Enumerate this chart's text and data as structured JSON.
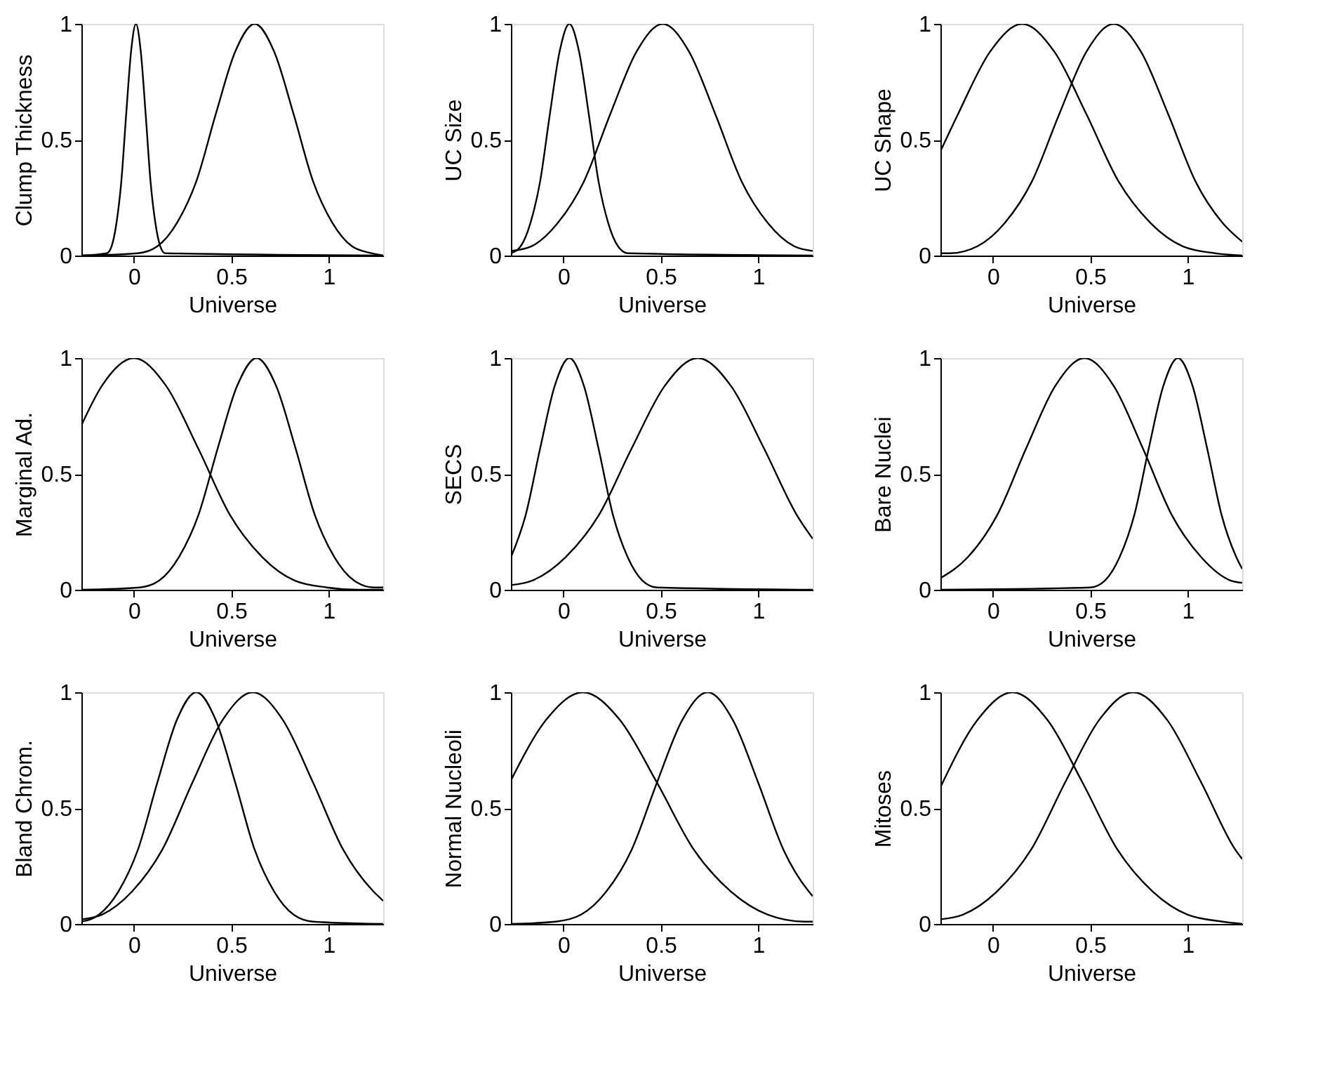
{
  "chart_data": [
    {
      "type": "line",
      "xlabel": "Universe",
      "ylabel": "Clump Thickness",
      "xlim": [
        -0.27,
        1.28
      ],
      "ylim": [
        0,
        1
      ],
      "xticks": [
        0,
        0.5,
        1
      ],
      "yticks": [
        0,
        0.5,
        1
      ],
      "grid": false,
      "legend": false,
      "series": [
        {
          "color": "#000000",
          "x": [
            -0.27,
            -0.14,
            -0.115,
            -0.09,
            -0.065,
            -0.04,
            -0.015,
            0.01,
            0.035,
            0.06,
            0.085,
            0.11,
            0.135,
            0.16,
            1.28
          ],
          "values": [
            0,
            0.01,
            0.04,
            0.14,
            0.32,
            0.61,
            0.88,
            1,
            0.88,
            0.61,
            0.32,
            0.14,
            0.04,
            0.01,
            0
          ]
        },
        {
          "color": "#000000",
          "x": [
            -0.27,
            0.02,
            0.12,
            0.22,
            0.32,
            0.42,
            0.52,
            0.62,
            0.72,
            0.82,
            0.92,
            1.02,
            1.12,
            1.22,
            1.28
          ],
          "values": [
            0,
            0.01,
            0.04,
            0.14,
            0.32,
            0.61,
            0.88,
            1,
            0.88,
            0.61,
            0.32,
            0.14,
            0.04,
            0.01,
            0
          ]
        }
      ]
    },
    {
      "type": "line",
      "xlabel": "Universe",
      "ylabel": "UC Size",
      "xlim": [
        -0.27,
        1.28
      ],
      "ylim": [
        0,
        1
      ],
      "xticks": [
        0,
        0.5,
        1
      ],
      "yticks": [
        0,
        0.5,
        1
      ],
      "grid": false,
      "legend": false,
      "series": [
        {
          "color": "#000000",
          "x": [
            -0.27,
            -0.22,
            -0.17,
            -0.12,
            -0.07,
            -0.02,
            0.03,
            0.08,
            0.13,
            0.18,
            0.23,
            0.28,
            0.33,
            1.28
          ],
          "values": [
            0.01,
            0.04,
            0.14,
            0.32,
            0.61,
            0.88,
            1,
            0.88,
            0.61,
            0.32,
            0.14,
            0.04,
            0.01,
            0
          ]
        },
        {
          "color": "#000000",
          "x": [
            -0.27,
            -0.165,
            -0.03,
            0.105,
            0.24,
            0.375,
            0.51,
            0.645,
            0.78,
            0.915,
            1.05,
            1.185,
            1.28
          ],
          "values": [
            0.02,
            0.04,
            0.14,
            0.32,
            0.61,
            0.88,
            1,
            0.88,
            0.61,
            0.32,
            0.14,
            0.04,
            0.02
          ]
        }
      ]
    },
    {
      "type": "line",
      "xlabel": "Universe",
      "ylabel": "UC Shape",
      "xlim": [
        -0.27,
        1.28
      ],
      "ylim": [
        0,
        1
      ],
      "xticks": [
        0,
        0.5,
        1
      ],
      "yticks": [
        0,
        0.5,
        1
      ],
      "grid": false,
      "legend": false,
      "series": [
        {
          "color": "#000000",
          "x": [
            -0.27,
            -0.18,
            -0.015,
            0.15,
            0.315,
            0.48,
            0.645,
            0.81,
            0.975,
            1.14,
            1.28
          ],
          "values": [
            0.45,
            0.61,
            0.88,
            1,
            0.88,
            0.61,
            0.32,
            0.14,
            0.04,
            0.01,
            0
          ]
        },
        {
          "color": "#000000",
          "x": [
            -0.27,
            -0.22,
            -0.08,
            0.06,
            0.2,
            0.34,
            0.48,
            0.62,
            0.76,
            0.9,
            1.04,
            1.18,
            1.28
          ],
          "values": [
            0.01,
            0.01,
            0.04,
            0.14,
            0.32,
            0.61,
            0.88,
            1,
            0.88,
            0.61,
            0.32,
            0.14,
            0.06
          ]
        }
      ]
    },
    {
      "type": "line",
      "xlabel": "Universe",
      "ylabel": "Marginal Ad.",
      "xlim": [
        -0.27,
        1.28
      ],
      "ylim": [
        0,
        1
      ],
      "xticks": [
        0,
        0.5,
        1
      ],
      "yticks": [
        0,
        0.5,
        1
      ],
      "grid": false,
      "legend": false,
      "series": [
        {
          "color": "#000000",
          "x": [
            -0.27,
            -0.165,
            0,
            0.165,
            0.33,
            0.495,
            0.66,
            0.825,
            0.99,
            1.155,
            1.28
          ],
          "values": [
            0.71,
            0.88,
            1,
            0.88,
            0.61,
            0.32,
            0.14,
            0.04,
            0.01,
            0,
            0
          ]
        },
        {
          "color": "#000000",
          "x": [
            -0.27,
            0.03,
            0.13,
            0.23,
            0.33,
            0.43,
            0.53,
            0.63,
            0.73,
            0.83,
            0.93,
            1.03,
            1.13,
            1.23,
            1.28
          ],
          "values": [
            0,
            0.01,
            0.04,
            0.14,
            0.32,
            0.61,
            0.88,
            1,
            0.88,
            0.61,
            0.32,
            0.14,
            0.04,
            0.01,
            0.01
          ]
        }
      ]
    },
    {
      "type": "line",
      "xlabel": "Universe",
      "ylabel": "SECS",
      "xlim": [
        -0.27,
        1.28
      ],
      "ylim": [
        0,
        1
      ],
      "xticks": [
        0,
        0.5,
        1
      ],
      "yticks": [
        0,
        0.5,
        1
      ],
      "grid": false,
      "legend": false,
      "series": [
        {
          "color": "#000000",
          "x": [
            -0.27,
            -0.195,
            -0.12,
            -0.045,
            0.03,
            0.105,
            0.18,
            0.255,
            0.33,
            0.405,
            0.48,
            1.28
          ],
          "values": [
            0.14,
            0.32,
            0.61,
            0.88,
            1,
            0.88,
            0.61,
            0.32,
            0.14,
            0.04,
            0.01,
            0
          ]
        },
        {
          "color": "#000000",
          "x": [
            -0.27,
            -0.16,
            0.01,
            0.18,
            0.35,
            0.52,
            0.69,
            0.86,
            1.03,
            1.2,
            1.28
          ],
          "values": [
            0.02,
            0.04,
            0.14,
            0.32,
            0.61,
            0.88,
            1,
            0.88,
            0.61,
            0.32,
            0.22
          ]
        }
      ]
    },
    {
      "type": "line",
      "xlabel": "Universe",
      "ylabel": "Bare Nuclei",
      "xlim": [
        -0.27,
        1.28
      ],
      "ylim": [
        0,
        1
      ],
      "xticks": [
        0,
        0.5,
        1
      ],
      "yticks": [
        0,
        0.5,
        1
      ],
      "grid": false,
      "legend": false,
      "series": [
        {
          "color": "#000000",
          "x": [
            -0.27,
            -0.13,
            0.02,
            0.17,
            0.32,
            0.47,
            0.62,
            0.77,
            0.92,
            1.07,
            1.22,
            1.28
          ],
          "values": [
            0.05,
            0.14,
            0.32,
            0.61,
            0.88,
            1,
            0.88,
            0.61,
            0.32,
            0.14,
            0.04,
            0.03
          ]
        },
        {
          "color": "#000000",
          "x": [
            -0.27,
            0.5,
            0.575,
            0.65,
            0.725,
            0.8,
            0.875,
            0.95,
            1.025,
            1.1,
            1.175,
            1.25,
            1.28
          ],
          "values": [
            0,
            0.01,
            0.04,
            0.14,
            0.32,
            0.61,
            0.88,
            1,
            0.88,
            0.61,
            0.32,
            0.14,
            0.09
          ]
        }
      ]
    },
    {
      "type": "line",
      "xlabel": "Universe",
      "ylabel": "Bland Chrom.",
      "xlim": [
        -0.27,
        1.28
      ],
      "ylim": [
        0,
        1
      ],
      "xticks": [
        0,
        0.5,
        1
      ],
      "yticks": [
        0,
        0.5,
        1
      ],
      "grid": false,
      "legend": false,
      "series": [
        {
          "color": "#000000",
          "x": [
            -0.27,
            -0.18,
            -0.08,
            0.02,
            0.12,
            0.22,
            0.32,
            0.42,
            0.52,
            0.62,
            0.72,
            0.82,
            0.92,
            1.28
          ],
          "values": [
            0.01,
            0.04,
            0.14,
            0.32,
            0.61,
            0.88,
            1,
            0.88,
            0.61,
            0.32,
            0.14,
            0.04,
            0.01,
            0
          ]
        },
        {
          "color": "#000000",
          "x": [
            -0.27,
            -0.165,
            -0.01,
            0.145,
            0.3,
            0.455,
            0.61,
            0.765,
            0.92,
            1.075,
            1.23,
            1.28
          ],
          "values": [
            0.02,
            0.04,
            0.14,
            0.32,
            0.61,
            0.88,
            1,
            0.88,
            0.61,
            0.32,
            0.14,
            0.1
          ]
        }
      ]
    },
    {
      "type": "line",
      "xlabel": "Universe",
      "ylabel": "Normal Nucleoli",
      "xlim": [
        -0.27,
        1.28
      ],
      "ylim": [
        0,
        1
      ],
      "xticks": [
        0,
        0.5,
        1
      ],
      "yticks": [
        0,
        0.5,
        1
      ],
      "grid": false,
      "legend": false,
      "series": [
        {
          "color": "#000000",
          "x": [
            -0.27,
            -0.09,
            0.1,
            0.29,
            0.48,
            0.67,
            0.86,
            1.05,
            1.24,
            1.28
          ],
          "values": [
            0.62,
            0.88,
            1,
            0.88,
            0.61,
            0.32,
            0.14,
            0.04,
            0.01,
            0.01
          ]
        },
        {
          "color": "#000000",
          "x": [
            -0.27,
            -0.04,
            0.09,
            0.22,
            0.35,
            0.48,
            0.61,
            0.74,
            0.87,
            1.0,
            1.13,
            1.26,
            1.28
          ],
          "values": [
            0,
            0.01,
            0.04,
            0.14,
            0.32,
            0.61,
            0.88,
            1,
            0.88,
            0.61,
            0.32,
            0.14,
            0.12
          ]
        }
      ]
    },
    {
      "type": "line",
      "xlabel": "Universe",
      "ylabel": "Mitoses",
      "xlim": [
        -0.27,
        1.28
      ],
      "ylim": [
        0,
        1
      ],
      "xticks": [
        0,
        0.5,
        1
      ],
      "yticks": [
        0,
        0.5,
        1
      ],
      "grid": false,
      "legend": false,
      "series": [
        {
          "color": "#000000",
          "x": [
            -0.27,
            -0.08,
            0.1,
            0.28,
            0.46,
            0.64,
            0.82,
            1.0,
            1.18,
            1.28
          ],
          "values": [
            0.59,
            0.88,
            1,
            0.88,
            0.61,
            0.32,
            0.14,
            0.04,
            0.01,
            0
          ]
        },
        {
          "color": "#000000",
          "x": [
            -0.27,
            -0.155,
            0.02,
            0.195,
            0.37,
            0.545,
            0.72,
            0.895,
            1.07,
            1.245,
            1.28
          ],
          "values": [
            0.02,
            0.04,
            0.14,
            0.32,
            0.61,
            0.88,
            1,
            0.88,
            0.61,
            0.32,
            0.28
          ]
        }
      ]
    }
  ]
}
